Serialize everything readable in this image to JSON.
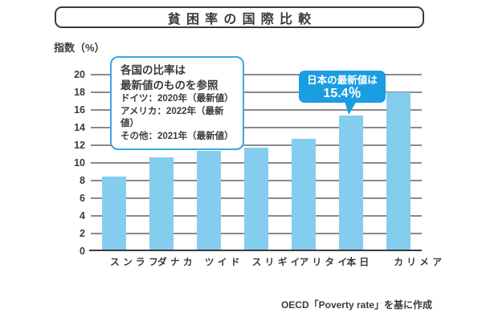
{
  "header": {
    "title": "貧困率の国際比較"
  },
  "axis_label": "指数（%）",
  "annotation_box": {
    "headline_1": "各国の比率は",
    "headline_2": "最新値のものを参照",
    "details": [
      "ドイツ：2020年（最新値）",
      "アメリカ：2022年（最新値）",
      "その他：2021年（最新値）"
    ]
  },
  "callout": {
    "line1": "日本の最新値は",
    "line2": "15.4％"
  },
  "footer": {
    "source": "OECD「Poverty rate」を基に作成"
  },
  "colors": {
    "bar": "#85cdee",
    "callout_blue": "#1b9de2",
    "note_border_blue": "#3aa7e2",
    "gridline": "#8a8a8a",
    "ink": "#3e3a39"
  },
  "chart_data": {
    "type": "bar",
    "title": "貧困率の国際比較",
    "ylabel": "指数（%）",
    "categories": [
      "フランス",
      "カナダ",
      "ドイツ",
      "イギリス",
      "イタリア",
      "日本",
      "アメリカ"
    ],
    "values": [
      8.5,
      10.6,
      11.4,
      11.7,
      12.7,
      15.4,
      18.0
    ],
    "ylim": [
      0,
      20
    ],
    "ytick_step": 2,
    "grid": true,
    "legend": "none",
    "bar_color": "#85cdee"
  }
}
